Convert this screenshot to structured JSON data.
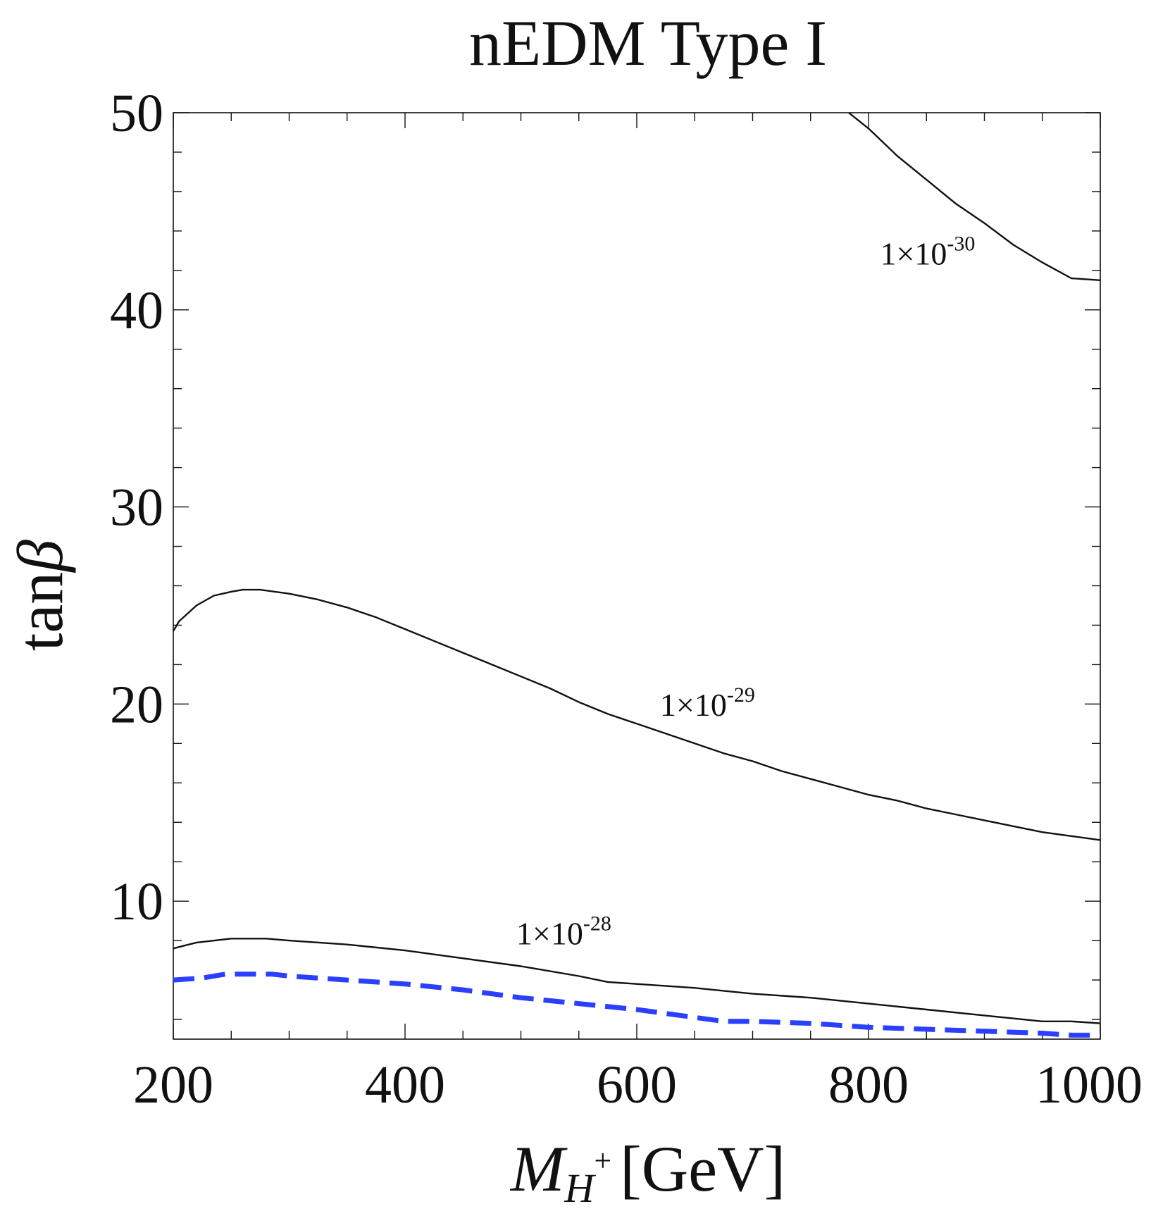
{
  "chart_data": {
    "type": "line",
    "title": "nEDM Type I",
    "xlabel": {
      "main": "M",
      "subscript": "H",
      "superscript": "+",
      "unit": "[GeV]"
    },
    "ylabel": {
      "main": "tan",
      "symbol": "β"
    },
    "xlim": [
      200,
      1000
    ],
    "ylim": [
      3,
      50
    ],
    "xticks": [
      200,
      400,
      600,
      800,
      1000
    ],
    "xtick_labels": [
      "200",
      "400",
      "600",
      "800",
      "1000"
    ],
    "xminor_step": 50,
    "yticks": [
      10,
      20,
      30,
      40,
      50
    ],
    "ytick_labels": [
      "10",
      "20",
      "30",
      "40",
      "50"
    ],
    "yminor_step": 2,
    "grid": false,
    "series": [
      {
        "name": "1×10^-30 contour",
        "style": "solid",
        "color": "#111111",
        "label": {
          "base": "1×10",
          "exp": "-30",
          "at": [
            810,
            42.3
          ]
        },
        "x": [
          783,
          800,
          825,
          850,
          875,
          900,
          925,
          950,
          975,
          1000
        ],
        "y": [
          50,
          49.2,
          47.8,
          46.6,
          45.4,
          44.4,
          43.3,
          42.4,
          41.6,
          41.5
        ]
      },
      {
        "name": "1×10^-29 contour",
        "style": "solid",
        "color": "#111111",
        "label": {
          "base": "1×10",
          "exp": "-29",
          "at": [
            620,
            19.4
          ]
        },
        "x": [
          200,
          205,
          220,
          235,
          250,
          260,
          275,
          300,
          325,
          350,
          375,
          400,
          425,
          450,
          475,
          500,
          525,
          550,
          575,
          600,
          625,
          650,
          675,
          700,
          725,
          750,
          775,
          800,
          825,
          850,
          875,
          900,
          925,
          950,
          975,
          1000
        ],
        "y": [
          23.7,
          24.2,
          25.0,
          25.5,
          25.7,
          25.8,
          25.8,
          25.6,
          25.3,
          24.9,
          24.4,
          23.8,
          23.2,
          22.6,
          22.0,
          21.4,
          20.8,
          20.1,
          19.5,
          19.0,
          18.5,
          18.0,
          17.5,
          17.1,
          16.6,
          16.2,
          15.8,
          15.4,
          15.1,
          14.7,
          14.4,
          14.1,
          13.8,
          13.5,
          13.3,
          13.1
        ]
      },
      {
        "name": "1×10^-28 contour",
        "style": "solid",
        "color": "#111111",
        "label": {
          "base": "1×10",
          "exp": "-28",
          "at": [
            496,
            7.8
          ]
        },
        "x": [
          200,
          220,
          250,
          260,
          280,
          300,
          350,
          400,
          450,
          500,
          550,
          575,
          600,
          650,
          700,
          750,
          800,
          850,
          900,
          950,
          975,
          1000
        ],
        "y": [
          7.6,
          7.9,
          8.1,
          8.1,
          8.1,
          8.0,
          7.8,
          7.5,
          7.1,
          6.7,
          6.2,
          5.9,
          5.8,
          5.6,
          5.3,
          5.1,
          4.8,
          4.5,
          4.2,
          3.9,
          3.9,
          3.8
        ]
      },
      {
        "name": "nEDM bound",
        "style": "dashed",
        "color": "#2a3fff",
        "x": [
          200,
          225,
          245,
          265,
          285,
          300,
          350,
          400,
          450,
          500,
          550,
          600,
          650,
          675,
          700,
          750,
          800,
          850,
          900,
          950,
          975,
          1000
        ],
        "y": [
          6.0,
          6.1,
          6.3,
          6.3,
          6.3,
          6.2,
          6.0,
          5.8,
          5.5,
          5.1,
          4.8,
          4.5,
          4.1,
          3.9,
          3.9,
          3.8,
          3.6,
          3.5,
          3.4,
          3.3,
          3.2,
          3.2
        ]
      }
    ]
  }
}
